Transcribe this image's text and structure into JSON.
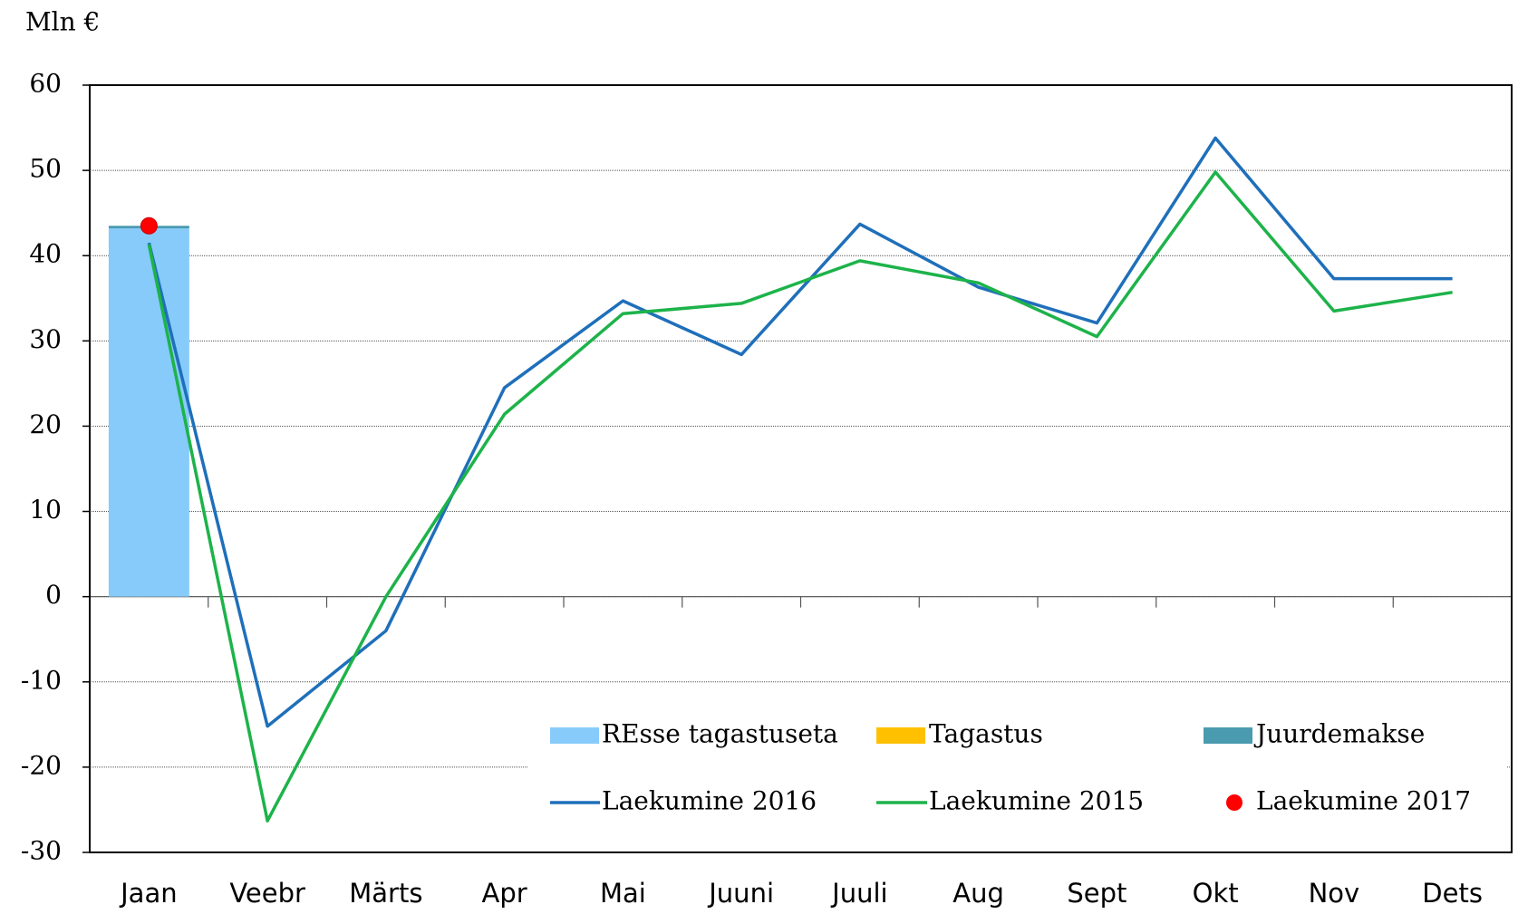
{
  "chart_data": {
    "type": "combo",
    "y_label": "Mln €",
    "categories": [
      "Jaan",
      "Veebr",
      "Märts",
      "Apr",
      "Mai",
      "Juuni",
      "Juuli",
      "Aug",
      "Sept",
      "Okt",
      "Nov",
      "Dets"
    ],
    "ylim": [
      -30,
      60
    ],
    "yticks": [
      -30,
      -20,
      -10,
      0,
      10,
      20,
      30,
      40,
      50,
      60
    ],
    "grid": true,
    "legend": "bottom-right",
    "series": [
      {
        "name": "REsse tagastuseta",
        "type": "bar",
        "stack": "a",
        "color": "#87cbfa",
        "values": [
          43.2,
          null,
          null,
          null,
          null,
          null,
          null,
          null,
          null,
          null,
          null,
          null
        ]
      },
      {
        "name": "Tagastus",
        "type": "bar",
        "stack": "a",
        "color": "#ffc000",
        "values": [
          0,
          null,
          null,
          null,
          null,
          null,
          null,
          null,
          null,
          null,
          null,
          null
        ]
      },
      {
        "name": "Juurdemakse",
        "type": "bar",
        "stack": "a",
        "color": "#4a9bb0",
        "values": [
          0.3,
          null,
          null,
          null,
          null,
          null,
          null,
          null,
          null,
          null,
          null,
          null
        ]
      },
      {
        "name": "Laekumine 2016",
        "type": "line",
        "color": "#1f6fba",
        "values": [
          41.5,
          -15.2,
          -4,
          24.5,
          34.7,
          28.4,
          43.7,
          36.3,
          32.1,
          53.8,
          37.3,
          37.3
        ]
      },
      {
        "name": "Laekumine 2015",
        "type": "line",
        "color": "#1db34a",
        "values": [
          41.3,
          -26.3,
          0,
          21.4,
          33.2,
          34.4,
          39.4,
          36.8,
          30.5,
          49.8,
          33.5,
          35.7
        ]
      },
      {
        "name": "Laekumine 2017",
        "type": "scatter",
        "color": "#ff0000",
        "values": [
          43.5,
          null,
          null,
          null,
          null,
          null,
          null,
          null,
          null,
          null,
          null,
          null
        ]
      }
    ]
  }
}
